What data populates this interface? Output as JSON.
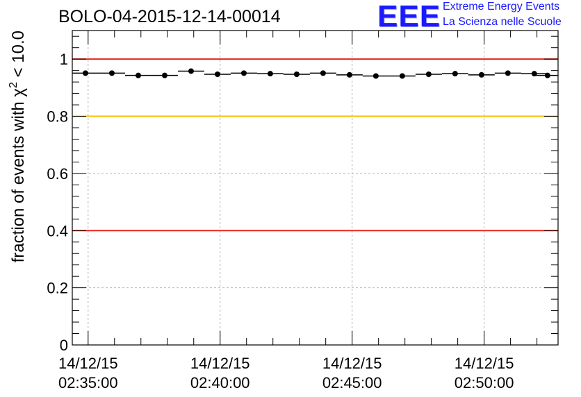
{
  "chart_data": {
    "type": "scatter",
    "title": "BOLO-04-2015-12-14-00014",
    "ylabel": "fraction of events with χ² < 10.0",
    "ylabel_main": "fraction of events with ",
    "ylabel_symbol": "χ",
    "ylabel_sup": "2",
    "ylabel_tail": " < 10.0",
    "ylim": [
      0,
      1.1
    ],
    "yticks": [
      0,
      0.2,
      0.4,
      0.6,
      0.8,
      1
    ],
    "ytick_labels": [
      "0",
      "0.2",
      "0.4",
      "0.6",
      "0.8",
      "1"
    ],
    "xlim_min": [
      34.4,
      52.8
    ],
    "xticks_min": [
      35,
      40,
      45,
      50
    ],
    "xtick_labels": [
      {
        "date": "14/12/15",
        "time": "02:35:00"
      },
      {
        "date": "14/12/15",
        "time": "02:40:00"
      },
      {
        "date": "14/12/15",
        "time": "02:45:00"
      },
      {
        "date": "14/12/15",
        "time": "02:50:00"
      }
    ],
    "grid": true,
    "reference_lines": [
      {
        "y": 1.0,
        "color": "#e8261c"
      },
      {
        "y": 0.8,
        "color": "#f5be0a"
      },
      {
        "y": 0.4,
        "color": "#e8261c"
      }
    ],
    "bin_width_min": 1,
    "series": [
      {
        "x": [
          34.9,
          35.9,
          36.9,
          37.9,
          38.9,
          39.9,
          40.9,
          41.9,
          42.9,
          43.9,
          44.9,
          45.9,
          46.9,
          47.9,
          48.9,
          49.9,
          50.9,
          51.9,
          52.4
        ],
        "y": [
          0.951,
          0.951,
          0.943,
          0.943,
          0.958,
          0.947,
          0.951,
          0.949,
          0.947,
          0.951,
          0.945,
          0.941,
          0.941,
          0.947,
          0.949,
          0.945,
          0.951,
          0.949,
          0.943
        ]
      }
    ]
  },
  "logo": {
    "mark": "EEE",
    "line1": "Extreme Energy Events",
    "line2": "La Scienza nelle Scuole",
    "color": "#1a1aff"
  }
}
